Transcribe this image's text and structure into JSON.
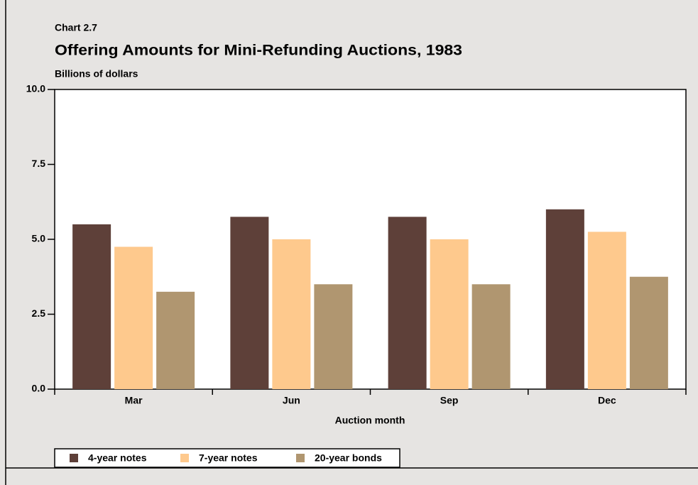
{
  "chart_data": {
    "type": "bar",
    "subtitle": "Chart 2.7",
    "title": "Offering Amounts for Mini-Refunding Auctions, 1983",
    "y_label": "Billions of dollars",
    "x_label": "Auction month",
    "categories": [
      "Mar",
      "Jun",
      "Sep",
      "Dec"
    ],
    "series": [
      {
        "name": "4-year notes",
        "color": "#5e4039",
        "values": [
          5.5,
          5.75,
          5.75,
          6.0
        ]
      },
      {
        "name": "7-year notes",
        "color": "#fec98d",
        "values": [
          4.75,
          5.0,
          5.0,
          5.25
        ]
      },
      {
        "name": "20-year bonds",
        "color": "#b09670",
        "values": [
          3.25,
          3.5,
          3.5,
          3.75
        ]
      }
    ],
    "ylim": [
      0,
      10
    ],
    "yticks": [
      {
        "value": 0,
        "label": "0.0"
      },
      2.5,
      {
        "value": 5,
        "label": "5.0"
      },
      7.5,
      {
        "value": 10,
        "label": "10.0"
      }
    ],
    "grid": false,
    "legend": "bottom"
  }
}
